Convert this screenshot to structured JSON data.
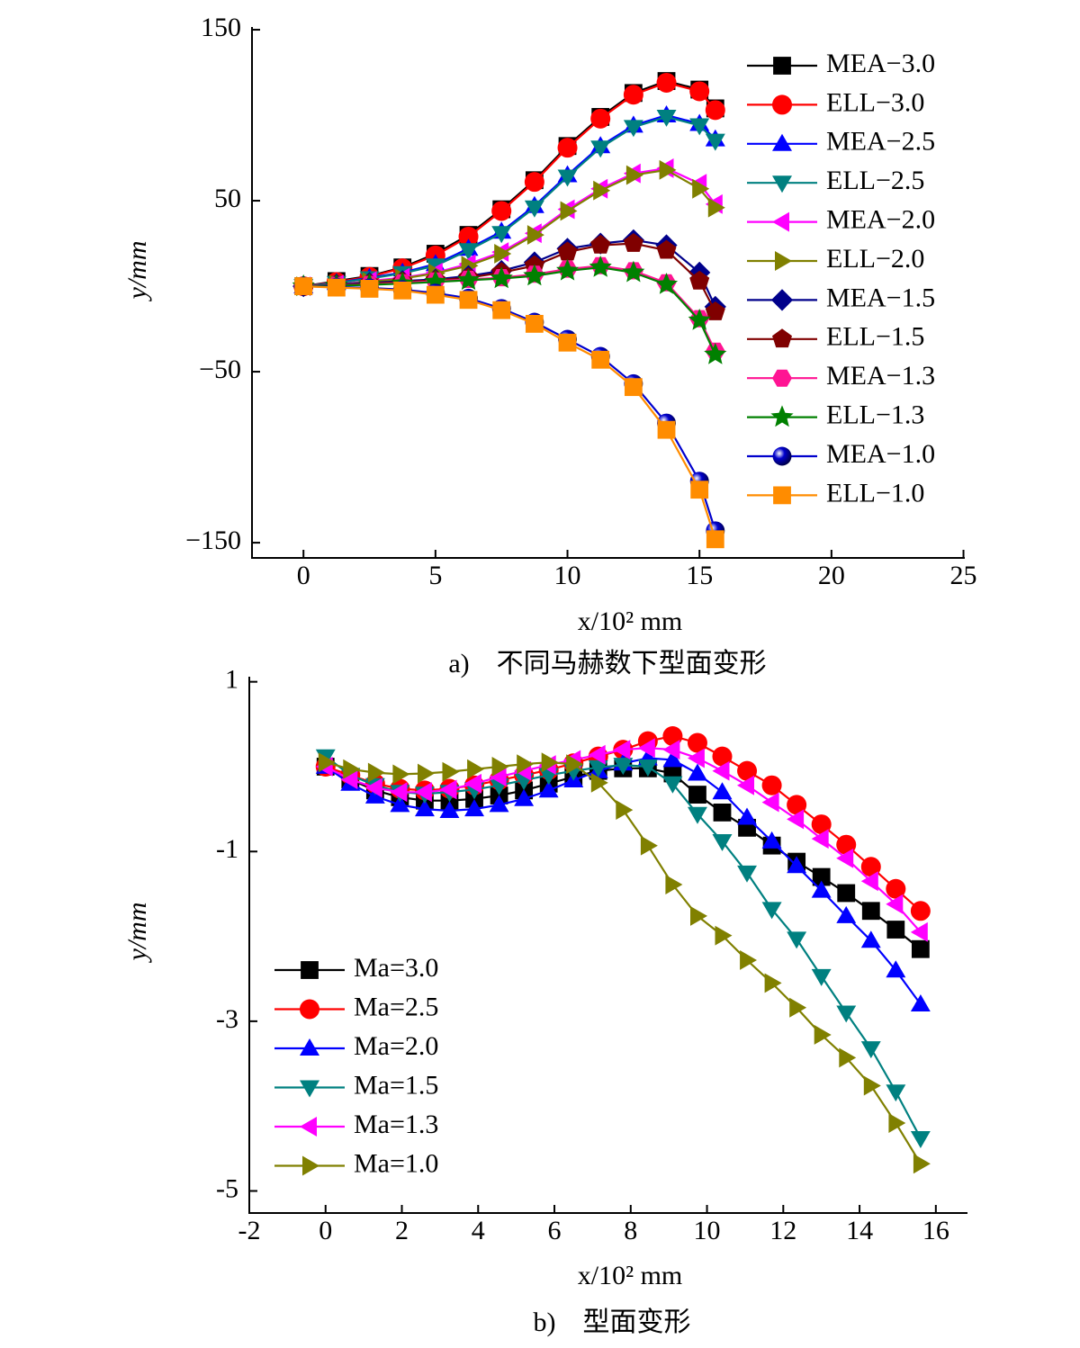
{
  "chart_data": [
    {
      "type": "line",
      "caption": "a)　不同马赫数下型面变形",
      "xlabel": "x/10² mm",
      "ylabel": "y/mm",
      "xlim": [
        -1.95,
        25.05
      ],
      "ylim": [
        -158.9,
        151.6
      ],
      "xticks": [
        0,
        5,
        10,
        15,
        20,
        25
      ],
      "yticks": [
        150,
        50,
        {
          "value": -50,
          "label": "−50"
        },
        {
          "value": -150,
          "label": "−150"
        }
      ],
      "legend": "upper right",
      "x": [
        0,
        1.25,
        2.5,
        3.75,
        5,
        6.25,
        7.5,
        8.75,
        10,
        11.25,
        12.5,
        13.75,
        15,
        15.6
      ],
      "series": [
        {
          "name": "MEA−3.0",
          "color": "#000000",
          "marker": "square",
          "values": [
            0,
            3,
            6,
            11,
            19,
            30,
            45,
            62,
            82,
            99,
            113,
            120,
            115,
            104
          ]
        },
        {
          "name": "ELL−3.0",
          "color": "#ff0000",
          "marker": "circle",
          "values": [
            0,
            2.5,
            5.5,
            10.5,
            18,
            29,
            44,
            61,
            81,
            98,
            112,
            119,
            114,
            103
          ]
        },
        {
          "name": "MEA−2.5",
          "color": "#0000ff",
          "marker": "triangle-up",
          "values": [
            0,
            2,
            5,
            8,
            13,
            22,
            32,
            47,
            65,
            82,
            94,
            100,
            95,
            86
          ]
        },
        {
          "name": "ELL−2.5",
          "color": "#008080",
          "marker": "triangle-down",
          "values": [
            0,
            1.8,
            4.5,
            7.5,
            12,
            21,
            31,
            46,
            64,
            81,
            93,
            99,
            94,
            85
          ]
        },
        {
          "name": "MEA−2.0",
          "color": "#ff00ff",
          "marker": "triangle-left",
          "values": [
            0,
            1,
            3,
            5,
            8,
            13,
            20,
            31,
            45,
            57,
            66,
            69,
            60,
            48
          ]
        },
        {
          "name": "ELL−2.0",
          "color": "#808000",
          "marker": "triangle-right",
          "values": [
            0,
            1,
            2.5,
            4.5,
            7.5,
            12,
            19,
            30,
            44,
            56,
            65,
            68,
            57,
            46
          ]
        },
        {
          "name": "MEA−1.5",
          "color": "#00008b",
          "marker": "diamond",
          "values": [
            0,
            1,
            2,
            3,
            4,
            6,
            9,
            14,
            22,
            25,
            27,
            24,
            8,
            -12
          ]
        },
        {
          "name": "ELL−1.5",
          "color": "#800000",
          "marker": "pentagon",
          "values": [
            0,
            0.5,
            1.5,
            2.5,
            3.5,
            5,
            8,
            12,
            20,
            24,
            25,
            21,
            3,
            -15
          ]
        },
        {
          "name": "MEA−1.3",
          "color": "#ff1493",
          "marker": "hexagon",
          "values": [
            0,
            0.5,
            1,
            2,
            3,
            4,
            5,
            7,
            10,
            12,
            9,
            2,
            -19,
            -38
          ]
        },
        {
          "name": "ELL−1.3",
          "color": "#008000",
          "marker": "star",
          "values": [
            0,
            0.3,
            0.8,
            1.5,
            2.5,
            3.5,
            4.5,
            6,
            9,
            11,
            8,
            1,
            -20,
            -40
          ]
        },
        {
          "name": "MEA−1.0",
          "color": "#0000cd",
          "marker": "sphere",
          "values": [
            0,
            -0.5,
            -1,
            -2,
            -4,
            -7,
            -13,
            -21,
            -31,
            -41,
            -57,
            -80,
            -114,
            -143
          ]
        },
        {
          "name": "ELL−1.0",
          "color": "#ff8c00",
          "marker": "square",
          "values": [
            0,
            -0.8,
            -1.5,
            -2.5,
            -5,
            -8,
            -14,
            -22,
            -33,
            -43,
            -59,
            -84,
            -119,
            -148
          ]
        }
      ]
    },
    {
      "type": "line",
      "caption": "b)　型面变形",
      "xlabel": "x/10² mm",
      "ylabel": "y/mm",
      "xlim": [
        -2,
        16.83
      ],
      "ylim": [
        -5.26,
        1.06
      ],
      "xticks": [
        -2,
        0,
        2,
        4,
        6,
        8,
        10,
        12,
        14,
        16
      ],
      "yticks": [
        1,
        -1,
        -3,
        -5
      ],
      "legend": "lower left",
      "x": [
        0,
        0.65,
        1.3,
        1.95,
        2.6,
        3.25,
        3.9,
        4.55,
        5.2,
        5.85,
        6.5,
        7.15,
        7.8,
        8.45,
        9.1,
        9.75,
        10.4,
        11.05,
        11.7,
        12.35,
        13,
        13.65,
        14.3,
        14.95,
        15.6
      ],
      "series": [
        {
          "name": "Ma=3.0",
          "color": "#000000",
          "marker": "square",
          "values": [
            0,
            -0.15,
            -0.28,
            -0.36,
            -0.4,
            -0.4,
            -0.38,
            -0.34,
            -0.28,
            -0.2,
            -0.12,
            -0.05,
            -0.02,
            -0.02,
            -0.08,
            -0.33,
            -0.54,
            -0.72,
            -0.93,
            -1.12,
            -1.3,
            -1.49,
            -1.7,
            -1.92,
            -2.15
          ]
        },
        {
          "name": "Ma=2.5",
          "color": "#ff0000",
          "marker": "circle",
          "values": [
            0,
            -0.1,
            -0.2,
            -0.26,
            -0.28,
            -0.26,
            -0.22,
            -0.16,
            -0.1,
            -0.04,
            0.04,
            0.12,
            0.2,
            0.3,
            0.36,
            0.28,
            0.12,
            -0.05,
            -0.22,
            -0.45,
            -0.68,
            -0.92,
            -1.18,
            -1.44,
            -1.7
          ]
        },
        {
          "name": "Ma=2.0",
          "color": "#0000ff",
          "marker": "triangle-up",
          "values": [
            0,
            -0.2,
            -0.35,
            -0.45,
            -0.5,
            -0.52,
            -0.5,
            -0.45,
            -0.38,
            -0.28,
            -0.16,
            -0.05,
            0.04,
            0.1,
            0.08,
            -0.08,
            -0.3,
            -0.6,
            -0.88,
            -1.17,
            -1.46,
            -1.76,
            -2.05,
            -2.4,
            -2.8
          ]
        },
        {
          "name": "Ma=1.5",
          "color": "#008080",
          "marker": "triangle-down",
          "values": [
            0.12,
            -0.1,
            -0.22,
            -0.3,
            -0.32,
            -0.3,
            -0.27,
            -0.22,
            -0.16,
            -0.1,
            -0.05,
            -0.01,
            0.02,
            0,
            -0.2,
            -0.56,
            -0.88,
            -1.25,
            -1.68,
            -2.03,
            -2.47,
            -2.9,
            -3.32,
            -3.83,
            -4.38
          ]
        },
        {
          "name": "Ma=1.3",
          "color": "#ff00ff",
          "marker": "triangle-left",
          "values": [
            0,
            -0.15,
            -0.25,
            -0.3,
            -0.3,
            -0.27,
            -0.2,
            -0.12,
            -0.05,
            0.02,
            0.08,
            0.14,
            0.2,
            0.22,
            0.2,
            0.1,
            -0.05,
            -0.22,
            -0.42,
            -0.62,
            -0.85,
            -1.08,
            -1.35,
            -1.62,
            -1.95
          ]
        },
        {
          "name": "Ma=1.0",
          "color": "#808000",
          "marker": "triangle-right",
          "values": [
            0.05,
            -0.03,
            -0.07,
            -0.09,
            -0.08,
            -0.06,
            -0.03,
            0,
            0.03,
            0.05,
            0.03,
            -0.19,
            -0.51,
            -0.93,
            -1.39,
            -1.76,
            -1.99,
            -2.28,
            -2.55,
            -2.84,
            -3.16,
            -3.43,
            -3.76,
            -4.2,
            -4.68
          ]
        }
      ]
    }
  ]
}
